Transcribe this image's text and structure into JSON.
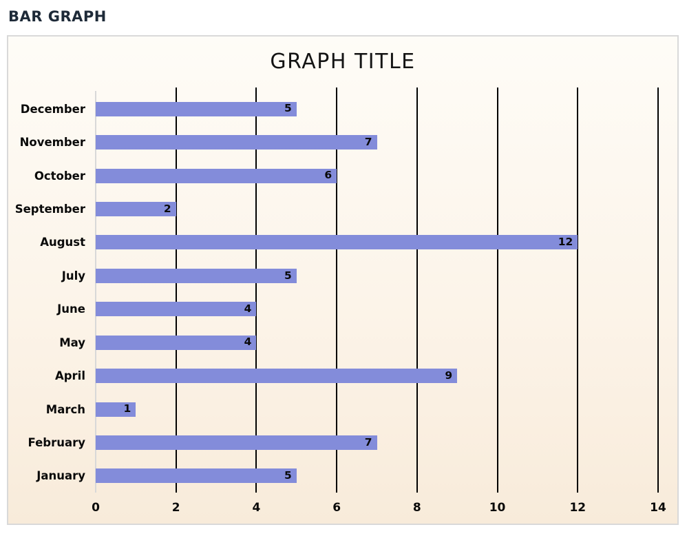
{
  "page": {
    "header": "BAR GRAPH"
  },
  "chart_data": {
    "type": "bar",
    "orientation": "horizontal",
    "title": "GRAPH TITLE",
    "categories": [
      "December",
      "November",
      "October",
      "September",
      "August",
      "July",
      "June",
      "May",
      "April",
      "March",
      "February",
      "January"
    ],
    "values": [
      5,
      7,
      6,
      2,
      12,
      5,
      4,
      4,
      9,
      1,
      7,
      5
    ],
    "categories_order": "top-to-bottom as displayed",
    "xlabel": "",
    "ylabel": "",
    "xlim": [
      0,
      14
    ],
    "x_ticks": [
      0,
      2,
      4,
      6,
      8,
      10,
      12,
      14
    ],
    "grid": "vertical black gridlines at each x tick except 0",
    "legend": "none",
    "bar_color": "#838cda",
    "value_labels": "inside bar, right end"
  }
}
